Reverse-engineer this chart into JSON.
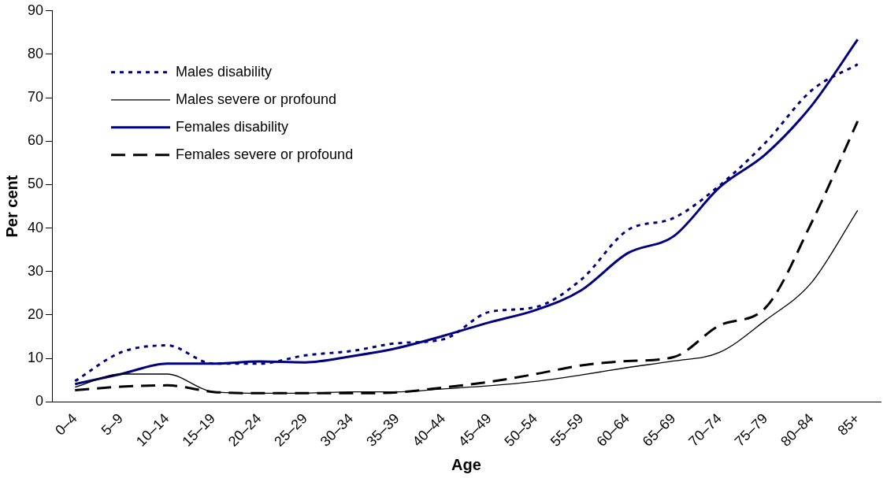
{
  "chart_data": {
    "type": "line",
    "xlabel": "Age",
    "ylabel": "Per cent",
    "categories": [
      "0–4",
      "5–9",
      "10–14",
      "15–19",
      "20–24",
      "25–29",
      "30–34",
      "35–39",
      "40–44",
      "45–49",
      "50–54",
      "55–59",
      "60–64",
      "65–69",
      "70–74",
      "75–79",
      "80–84",
      "85+"
    ],
    "series": [
      {
        "name": "Males disability",
        "color": "#000080",
        "line_style": "dotted",
        "values": [
          4.8,
          11.4,
          13.0,
          8.8,
          8.8,
          10.7,
          11.7,
          13.5,
          14.4,
          20.7,
          21.8,
          28.2,
          39.5,
          42.3,
          49.8,
          59.7,
          71.7,
          77.7
        ]
      },
      {
        "name": "Males severe or profound",
        "color": "#000000",
        "line_style": "solid",
        "values": [
          3.4,
          6.4,
          6.4,
          2.3,
          2.0,
          2.0,
          2.3,
          2.3,
          3.0,
          3.7,
          4.7,
          6.2,
          7.9,
          9.4,
          11.4,
          18.8,
          27.5,
          44.1
        ]
      },
      {
        "name": "Females disability",
        "color": "#000080",
        "line_style": "solid",
        "values": [
          4.1,
          6.4,
          8.8,
          8.8,
          9.3,
          9.1,
          10.5,
          12.4,
          15.2,
          18.3,
          21.1,
          25.7,
          34.2,
          38.1,
          49.4,
          57.0,
          68.2,
          83.4
        ]
      },
      {
        "name": "Females severe or profound",
        "color": "#000000",
        "line_style": "dashed",
        "values": [
          2.7,
          3.5,
          3.8,
          2.3,
          2.0,
          2.0,
          2.0,
          2.2,
          3.3,
          4.6,
          6.4,
          8.4,
          9.4,
          10.3,
          17.6,
          21.7,
          41.3,
          64.6
        ]
      }
    ],
    "ylim": [
      0,
      90
    ],
    "yticks": [
      0,
      10,
      20,
      30,
      40,
      50,
      60,
      70,
      80,
      90
    ],
    "grid": false,
    "legend": "top left",
    "marker": "none"
  }
}
